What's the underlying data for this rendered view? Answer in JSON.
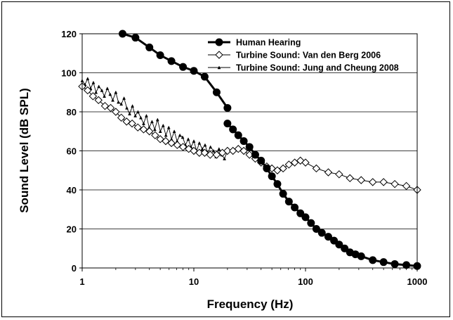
{
  "chart_data": {
    "type": "scatter",
    "title": "",
    "xlabel": "Frequency (Hz)",
    "ylabel": "Sound Level (dB SPL)",
    "xscale": "log",
    "xlim": [
      1,
      1000
    ],
    "ylim": [
      0,
      120
    ],
    "x_ticks": [
      "1",
      "10",
      "100",
      "1000"
    ],
    "y_ticks": [
      "0",
      "20",
      "40",
      "60",
      "80",
      "100",
      "120"
    ],
    "grid": "horizontal",
    "legend_position": "top-right",
    "series": [
      {
        "name": "Human Hearing",
        "marker": "filled-circle",
        "color": "#000000",
        "x": [
          2.3,
          3.0,
          4.0,
          5.0,
          6.3,
          8.0,
          10.0,
          12.5,
          16.0,
          20.0,
          20.0,
          22.4,
          25.0,
          28.0,
          31.5,
          35.5,
          40.0,
          45.0,
          50.0,
          56.0,
          63.0,
          71.0,
          80.0,
          90.0,
          100.0,
          112.0,
          125.0,
          140.0,
          160.0,
          180.0,
          200.0,
          224.0,
          250.0,
          280.0,
          315.0,
          400.0,
          500.0,
          630.0,
          800.0,
          1000.0
        ],
        "y": [
          120,
          118,
          113,
          109,
          106,
          103,
          101,
          98,
          90,
          82,
          74,
          71,
          68,
          65,
          62,
          58,
          55,
          51,
          47,
          43,
          38,
          34,
          31,
          28,
          26,
          23,
          20,
          18,
          16,
          14,
          12,
          10,
          8,
          7,
          6,
          4,
          3,
          2,
          1.5,
          1
        ]
      },
      {
        "name": "Turbine Sound: Van den Berg 2006",
        "marker": "open-diamond",
        "color": "#000000",
        "x": [
          1.0,
          1.12,
          1.25,
          1.4,
          1.6,
          1.8,
          2.0,
          2.24,
          2.5,
          2.8,
          3.15,
          3.55,
          4.0,
          4.5,
          5.0,
          5.6,
          6.3,
          7.1,
          8.0,
          9.0,
          10.0,
          11.2,
          12.5,
          14.0,
          16.0,
          18.0,
          20.0,
          22.4,
          25.0,
          28.0,
          31.5,
          35.5,
          40.0,
          45.0,
          50.0,
          56.0,
          63.0,
          71.0,
          80.0,
          90.0,
          100.0,
          125.0,
          160.0,
          200.0,
          250.0,
          315.0,
          400.0,
          500.0,
          630.0,
          800.0,
          1000.0
        ],
        "y": [
          93,
          91,
          88,
          86,
          83,
          82,
          80,
          77,
          75,
          74,
          72,
          71,
          70,
          68,
          66,
          65,
          64,
          63,
          62,
          61,
          60,
          59,
          59,
          58,
          58,
          59,
          60,
          60,
          61,
          60,
          58,
          56,
          54,
          52,
          51,
          50,
          51,
          53,
          54,
          55,
          54,
          51,
          49,
          48,
          46,
          45,
          44,
          44,
          43,
          42,
          40
        ]
      },
      {
        "name": "Turbine Sound: Jung and Cheung 2008",
        "marker": "small-triangle",
        "color": "#000000",
        "x": [
          1.0,
          1.06,
          1.12,
          1.19,
          1.26,
          1.33,
          1.41,
          1.5,
          1.58,
          1.68,
          1.78,
          1.88,
          2.0,
          2.11,
          2.24,
          2.37,
          2.51,
          2.66,
          2.82,
          2.99,
          3.16,
          3.35,
          3.55,
          3.76,
          3.98,
          4.22,
          4.47,
          4.73,
          5.01,
          5.31,
          5.62,
          5.96,
          6.31,
          6.68,
          7.08,
          7.5,
          7.94,
          8.41,
          8.91,
          9.44,
          10.0,
          10.6,
          11.2,
          11.9,
          12.6,
          13.3,
          14.1,
          15.0,
          15.8,
          16.8,
          17.8,
          18.8,
          20.0
        ],
        "y": [
          96,
          94,
          97,
          92,
          95,
          90,
          93,
          91,
          88,
          92,
          89,
          86,
          90,
          85,
          84,
          87,
          82,
          79,
          83,
          78,
          80,
          77,
          74,
          78,
          72,
          75,
          71,
          76,
          70,
          73,
          68,
          72,
          66,
          70,
          65,
          68,
          67,
          63,
          66,
          62,
          65,
          60,
          64,
          61,
          63,
          59,
          62,
          60,
          57,
          61,
          58,
          56,
          60
        ]
      }
    ]
  }
}
